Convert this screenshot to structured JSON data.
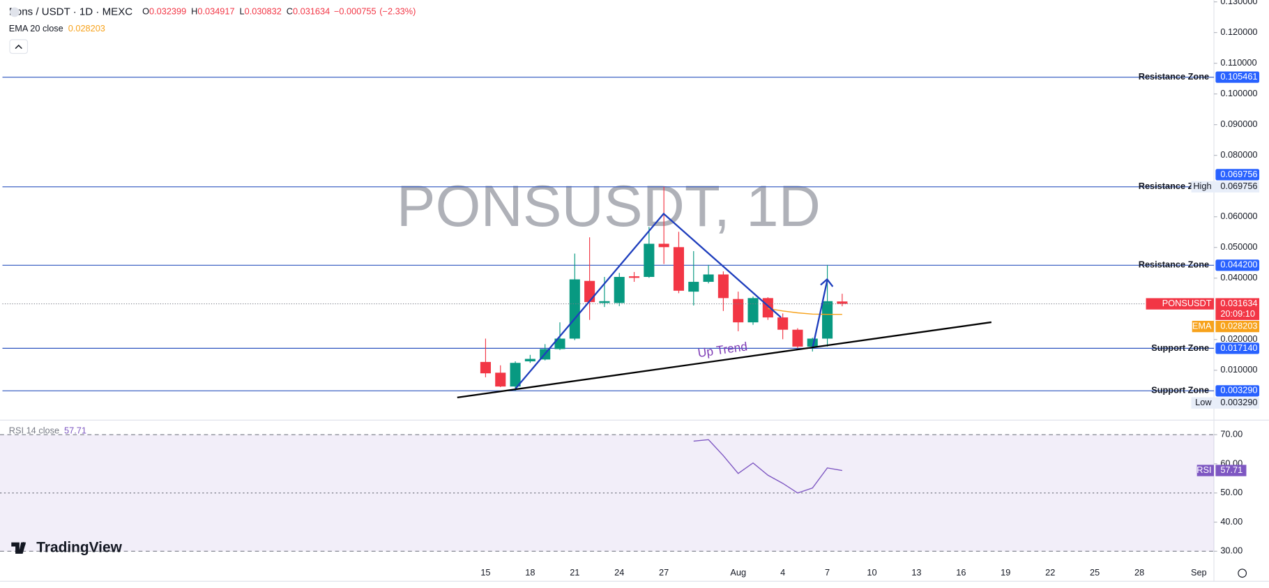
{
  "header": {
    "symbol": "Pons / USDT · 1D · MEXC",
    "ohlc_labels": [
      "O",
      "H",
      "L",
      "C"
    ],
    "change": "−0.000755",
    "change_pct": "(−2.33%)",
    "indicator": "EMA 20 close"
  },
  "watermark": "PONSUSDT, 1D",
  "branding": "TradingView",
  "chart_data": [
    {
      "type": "candlestick",
      "categories": [
        "15",
        null,
        null,
        "18",
        null,
        null,
        "21",
        null,
        null,
        "24",
        null,
        null,
        "27",
        null,
        null,
        null,
        null,
        "Aug",
        null,
        null,
        "4",
        null,
        null,
        "7",
        null,
        null,
        "10",
        null,
        null,
        "13",
        null,
        null,
        "16",
        null,
        null,
        "19",
        null,
        null,
        "22",
        null,
        null,
        "25",
        null,
        null,
        "28",
        null,
        null,
        null,
        "Sep"
      ],
      "open": [
        0.0127,
        0.0092,
        0.0047,
        0.0129,
        0.0135,
        0.0169,
        0.0203,
        0.0391,
        0.0319,
        0.0319,
        0.0406,
        0.0404,
        0.0512,
        0.0501,
        0.0356,
        0.0388,
        0.0412,
        0.0332,
        0.0256,
        0.0335,
        0.0272,
        0.0232,
        0.0177,
        0.0203,
        0.032399,
        null,
        null,
        null,
        null,
        null,
        null,
        null,
        null,
        null,
        null,
        null,
        null,
        null,
        null,
        null,
        null,
        null,
        null,
        null,
        null,
        null,
        null,
        null,
        null
      ],
      "high": [
        0.0203,
        0.0116,
        0.0129,
        0.015,
        0.0185,
        0.0256,
        0.048,
        0.0533,
        0.0404,
        0.0417,
        0.042,
        0.0567,
        0.069756,
        0.0551,
        0.0488,
        0.0443,
        0.0422,
        0.0356,
        0.034,
        0.0338,
        0.0285,
        0.0237,
        0.0206,
        0.0443,
        0.034917,
        null,
        null,
        null,
        null,
        null,
        null,
        null,
        null,
        null,
        null,
        null,
        null,
        null,
        null,
        null,
        null,
        null,
        null,
        null,
        null,
        null,
        null,
        null,
        null
      ],
      "low": [
        0.0077,
        0.0045,
        0.00329,
        0.0124,
        0.0132,
        0.0166,
        0.0198,
        0.0264,
        0.0306,
        0.0309,
        0.0388,
        0.0401,
        0.0446,
        0.0351,
        0.0311,
        0.0383,
        0.0293,
        0.0227,
        0.0248,
        0.0264,
        0.0201,
        0.0172,
        0.0161,
        0.0177,
        0.030832,
        null,
        null,
        null,
        null,
        null,
        null,
        null,
        null,
        null,
        null,
        null,
        null,
        null,
        null,
        null,
        null,
        null,
        null,
        null,
        null,
        null,
        null,
        null,
        null
      ],
      "close": [
        0.009,
        0.0047,
        0.0124,
        0.0137,
        0.0169,
        0.0203,
        0.0396,
        0.0322,
        0.0325,
        0.0404,
        0.0401,
        0.0512,
        0.0501,
        0.0359,
        0.0388,
        0.0412,
        0.0335,
        0.0256,
        0.0335,
        0.0272,
        0.0232,
        0.0177,
        0.0203,
        0.0325,
        0.031634,
        null,
        null,
        null,
        null,
        null,
        null,
        null,
        null,
        null,
        null,
        null,
        null,
        null,
        null,
        null,
        null,
        null,
        null,
        null,
        null,
        null,
        null,
        null,
        null
      ],
      "up_color": "#089981",
      "down_color": "#f23645",
      "series": [
        {
          "name": "EMA",
          "color": "#f7a21b",
          "values": [
            null,
            null,
            null,
            null,
            null,
            null,
            null,
            null,
            null,
            null,
            null,
            null,
            null,
            null,
            null,
            null,
            null,
            null,
            null,
            0.0301,
            0.0293,
            0.0287,
            0.0283,
            0.0282,
            0.028203,
            null,
            null,
            null,
            null,
            null,
            null,
            null,
            null,
            null,
            null,
            null,
            null,
            null,
            null,
            null,
            null,
            null,
            null,
            null,
            null,
            null,
            null,
            null,
            null
          ]
        }
      ],
      "ylim": [
        -0.006,
        0.1306
      ],
      "yticks": [
        {
          "value": 0.13,
          "label": "0.130000"
        },
        {
          "value": 0.12,
          "label": "0.120000"
        },
        {
          "value": 0.11,
          "label": "0.110000"
        },
        {
          "value": 0.1,
          "label": "0.100000"
        },
        {
          "value": 0.09,
          "label": "0.090000"
        },
        {
          "value": 0.08,
          "label": "0.080000"
        },
        {
          "value": 0.06,
          "label": "0.060000"
        },
        {
          "value": 0.05,
          "label": "0.050000"
        },
        {
          "value": 0.04,
          "label": "0.040000"
        },
        {
          "value": 0.02,
          "label": "0.020000"
        },
        {
          "value": 0.01,
          "label": "0.010000"
        }
      ],
      "grid": false,
      "levels": [
        {
          "name": "Resistance Zone",
          "value": 0.105461,
          "label": "0.105461"
        },
        {
          "name": "Resistance Zone",
          "value": 0.069756,
          "label": "0.069756"
        },
        {
          "name": "Resistance Zone",
          "value": 0.0442,
          "label": "0.044200"
        },
        {
          "name": "Support Zone",
          "value": 0.01714,
          "label": "0.017140"
        },
        {
          "name": "Support Zone",
          "value": 0.00329,
          "label": "0.003290"
        }
      ],
      "extremes": [
        {
          "name": "High",
          "value": 0.069756,
          "label": "0.069756"
        },
        {
          "name": "Low",
          "value": 0.00329,
          "label": "0.003290"
        }
      ],
      "price_label": "PONSUSDT",
      "countdown": "20:09:10",
      "annotation": "Up Trend"
    },
    {
      "type": "line",
      "name": "RSI",
      "label": "RSI 14 close",
      "color": "#7e57c2",
      "values": [
        null,
        null,
        null,
        null,
        null,
        null,
        null,
        null,
        null,
        null,
        null,
        null,
        null,
        null,
        67.8,
        68.3,
        62.8,
        56.7,
        60.3,
        56.1,
        53.3,
        50.0,
        51.7,
        58.6,
        57.71,
        null,
        null,
        null,
        null,
        null,
        null,
        null,
        null,
        null,
        null,
        null,
        null,
        null,
        null,
        null,
        null,
        null,
        null,
        null,
        null,
        null,
        null,
        null,
        null
      ],
      "ylim": [
        24.7,
        74.7
      ],
      "yticks": [
        {
          "value": 70,
          "label": "70.00"
        },
        {
          "value": 60,
          "label": "60.00"
        },
        {
          "value": 50,
          "label": "50.00"
        },
        {
          "value": 40,
          "label": "40.00"
        },
        {
          "value": 30,
          "label": "30.00"
        }
      ],
      "bands": [
        70,
        50,
        30
      ]
    }
  ]
}
